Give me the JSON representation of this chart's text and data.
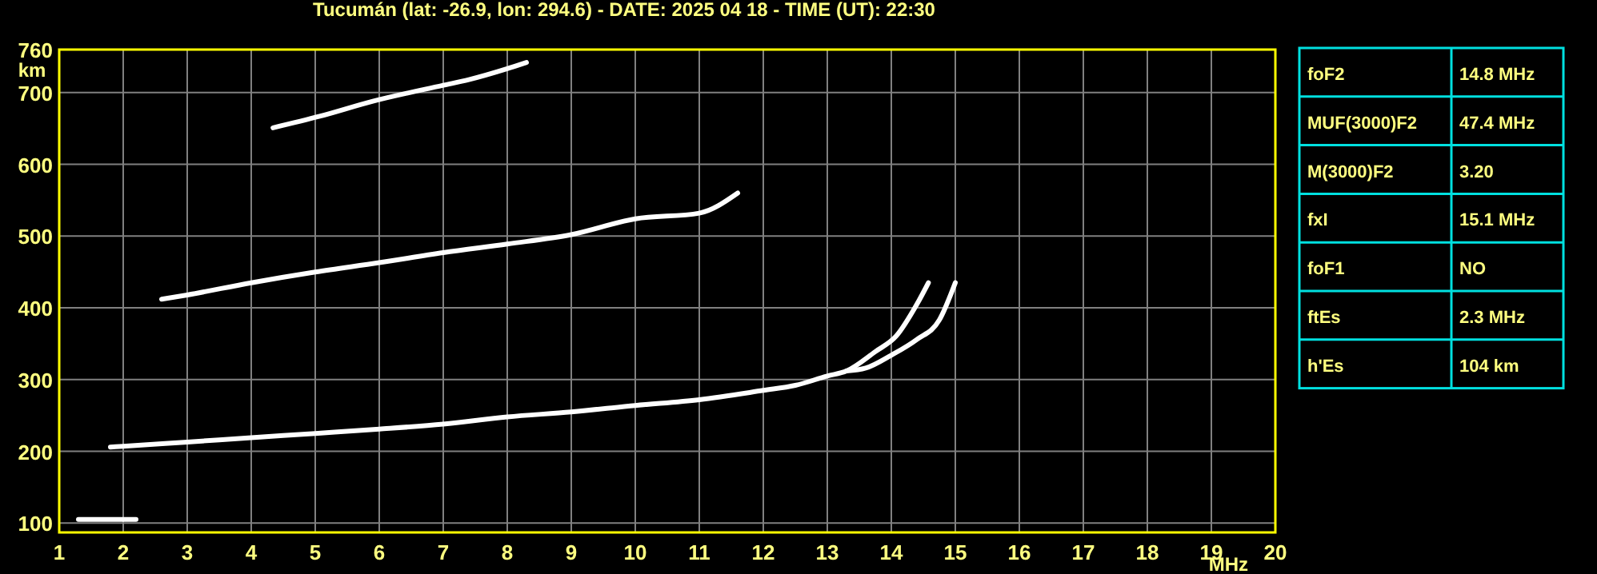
{
  "chart_data": [
    {
      "type": "line",
      "title": "Tucumán (lat: -26.9, lon: 294.6) - DATE: 2025 04 18 - TIME (UT): 22:30",
      "xlabel": "MHz",
      "ylabel": "km",
      "xlim": [
        1,
        20
      ],
      "ylim": [
        87,
        760
      ],
      "xticks": [
        1,
        2,
        3,
        4,
        5,
        6,
        7,
        8,
        9,
        10,
        11,
        12,
        13,
        14,
        15,
        16,
        17,
        18,
        19,
        20
      ],
      "yticks": [
        100,
        200,
        300,
        400,
        500,
        600,
        700,
        760
      ],
      "grid": true,
      "marker": "none",
      "line_style": "solid",
      "series": [
        {
          "color": "#ffffff",
          "x": [
            1.3,
            1.6,
            1.9,
            2.2
          ],
          "values": [
            105,
            105,
            105,
            105
          ]
        },
        {
          "color": "#ffffff",
          "x": [
            1.8,
            2,
            3,
            4,
            5,
            6,
            7,
            8,
            9,
            10,
            11,
            12,
            12.5,
            13,
            13.3,
            13.75,
            14.08,
            14.4,
            14.58
          ],
          "values": [
            206,
            207,
            213,
            219,
            225,
            231,
            238,
            248,
            255,
            264,
            272,
            285,
            292,
            305,
            312,
            339,
            361,
            405,
            435
          ]
        },
        {
          "color": "#ffffff",
          "x": [
            13.3,
            13.6,
            14,
            14.4,
            14.75,
            15
          ],
          "values": [
            312,
            316,
            334,
            356,
            383,
            435
          ]
        },
        {
          "color": "#ffffff",
          "x": [
            2.6,
            3,
            4,
            5,
            6,
            7,
            8,
            9,
            10,
            11,
            11.6
          ],
          "values": [
            412,
            418,
            435,
            450,
            463,
            477,
            489,
            502,
            524,
            532,
            560
          ]
        },
        {
          "color": "#ffffff",
          "x": [
            4.34,
            5.07,
            5.9,
            6.99,
            7.4,
            7.99,
            8.3
          ],
          "values": [
            651,
            667,
            688,
            710,
            718,
            733,
            742
          ]
        }
      ]
    },
    {
      "type": "other",
      "categories": [
        "foF2",
        "MUF(3000)F2",
        "M(3000)F2",
        "fxI",
        "foF1",
        "ftEs",
        "h'Es"
      ],
      "value_labels": [
        "14.8 MHz",
        "47.4 MHz",
        "3.20",
        "15.1 MHz",
        "NO",
        "2.3 MHz",
        "104 km"
      ]
    }
  ]
}
